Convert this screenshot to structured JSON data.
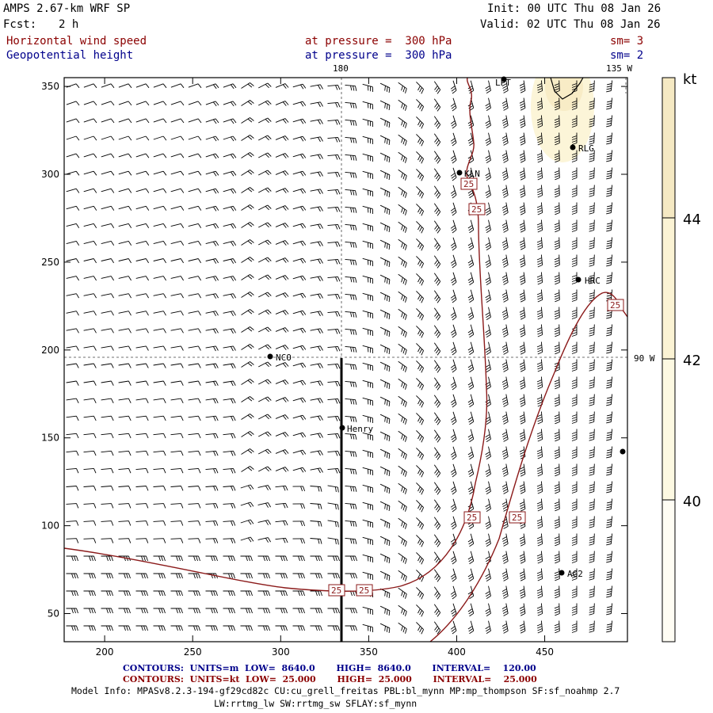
{
  "header": {
    "model": "AMPS 2.67-km WRF SP",
    "fcst_label": "Fcst:",
    "fcst_value": "2 h",
    "init": "Init: 00 UTC Thu 08 Jan 26",
    "valid": "Valid: 02 UTC Thu 08 Jan 26",
    "field1": "Horizontal wind speed",
    "field1_level": "at pressure =  300 hPa",
    "field1_sm": "sm= 3",
    "field2": "Geopotential height",
    "field2_level": "at pressure =  300 hPa",
    "field2_sm": "sm= 2"
  },
  "map": {
    "x_ticks": [
      "200",
      "250",
      "300",
      "350",
      "400",
      "450"
    ],
    "y_ticks": [
      "350",
      "300",
      "250",
      "200",
      "150",
      "100",
      "50"
    ],
    "x_range": [
      177,
      497
    ],
    "y_range": [
      34,
      355
    ],
    "meridian_labels": [
      "180",
      "135 W",
      "90 W"
    ],
    "stations": [
      "LPT",
      "RLG",
      "KLN",
      "HRC",
      "NCO",
      "Henry",
      "AG2"
    ],
    "contour_labels": [
      "25",
      "25",
      "25",
      "25",
      "25",
      "25",
      "25"
    ]
  },
  "colorbar": {
    "unit": "kt",
    "labels": [
      "44",
      "42",
      "40"
    ]
  },
  "footer": {
    "line1": "CONTOURS:  UNITS=m  LOW=  8640.0       HIGH=  8640.0       INTERVAL=    120.00",
    "line2": "CONTOURS:  UNITS=kt  LOW=  25.000       HIGH=  25.000       INTERVAL=    25.000",
    "model_info1": "Model Info: MPASv8.2.3-194-gf29cd82c CU:cu_grell_freitas PBL:bl_mynn MP:mp_thompson SF:sf_noahmp 2.7",
    "model_info2": "LW:rrtmg_lw SW:rrtmg_sw SFLAY:sf_mynn"
  },
  "colors": {
    "contour": "#8b1a1a",
    "shade_light": "#fdf7dc",
    "shade_mid": "#f8eccb",
    "shade_top": "#f2e2b2",
    "meridian": "#555555"
  }
}
